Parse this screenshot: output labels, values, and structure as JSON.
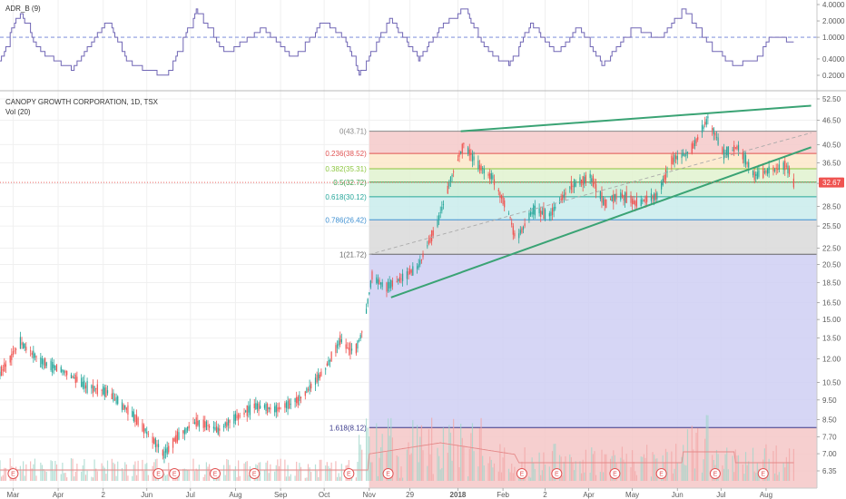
{
  "chart_data": {
    "type": "candlestick",
    "symbol_label": "CANOPY GROWTH CORPORATION, 1D, TSX",
    "volume_label": "Vol (20)",
    "indicator_label": "ADR_B (9)",
    "last_price": "32.67",
    "colors": {
      "up": "#26a69a",
      "down": "#ef5350",
      "trend": "#3aa374",
      "indicator": "#7066b5",
      "price_line": "#ef5350"
    },
    "x_axis": {
      "ticks": [
        {
          "label": "Mar",
          "date": "2017-03-01"
        },
        {
          "label": "Apr",
          "date": "2017-04-01"
        },
        {
          "label": "2",
          "date": "2017-05-02"
        },
        {
          "label": "Jun",
          "date": "2017-06-01"
        },
        {
          "label": "Jul",
          "date": "2017-07-01"
        },
        {
          "label": "Aug",
          "date": "2017-08-01"
        },
        {
          "label": "Sep",
          "date": "2017-09-01"
        },
        {
          "label": "Oct",
          "date": "2017-10-01"
        },
        {
          "label": "Nov",
          "date": "2017-11-01"
        },
        {
          "label": "29",
          "date": "2017-11-29"
        },
        {
          "label": "2018",
          "date": "2018-01-01"
        },
        {
          "label": "Feb",
          "date": "2018-02-01"
        },
        {
          "label": "2",
          "date": "2018-03-02"
        },
        {
          "label": "Apr",
          "date": "2018-04-01"
        },
        {
          "label": "May",
          "date": "2018-05-01"
        },
        {
          "label": "Jun",
          "date": "2018-06-01"
        },
        {
          "label": "Jul",
          "date": "2018-07-01"
        },
        {
          "label": "Aug",
          "date": "2018-08-01"
        }
      ]
    },
    "price_axis": {
      "scale": "log",
      "ticks": [
        "52.50",
        "46.50",
        "40.50",
        "36.50",
        "32.50",
        "28.50",
        "25.50",
        "22.50",
        "20.50",
        "18.50",
        "16.50",
        "15.00",
        "13.50",
        "12.00",
        "10.50",
        "9.50",
        "8.50",
        "7.70",
        "7.00",
        "6.35"
      ]
    },
    "indicator_axis": {
      "scale": "log",
      "ticks": [
        "4.0000",
        "2.0000",
        "1.0000",
        "0.4000",
        "0.2000"
      ],
      "reference_line": 1.0
    },
    "fibonacci": {
      "start_date": "2017-11-01",
      "levels": [
        {
          "ratio": "0",
          "price": 43.71,
          "label": "0(43.71)",
          "color": "#888888",
          "fill": "#f5c9c9"
        },
        {
          "ratio": "0.236",
          "price": 38.52,
          "label": "0.236(38.52)",
          "color": "#e05252",
          "fill": "#fde7c9"
        },
        {
          "ratio": "0.382",
          "price": 35.31,
          "label": "0.382(35.31)",
          "color": "#8cc63f",
          "fill": "#e1f2cf"
        },
        {
          "ratio": "0.5",
          "price": 32.72,
          "label": "0.5(32.72)",
          "color": "#3c9c4a",
          "fill": "#c9ecd6"
        },
        {
          "ratio": "0.618",
          "price": 30.12,
          "label": "0.618(30.12)",
          "color": "#26a69a",
          "fill": "#c9ecec"
        },
        {
          "ratio": "0.786",
          "price": 26.42,
          "label": "0.786(26.42)",
          "color": "#3d8fd1",
          "fill": "#d9d9d9"
        },
        {
          "ratio": "1",
          "price": 21.72,
          "label": "1(21.72)",
          "color": "#666666",
          "fill": "#cfcff3"
        },
        {
          "ratio": "1.618",
          "price": 8.12,
          "label": "1.618(8.12)",
          "color": "#3a3a8c",
          "fill": "#f4c7c7"
        }
      ]
    },
    "trendlines": [
      {
        "name": "upper-channel",
        "from": {
          "date": "2018-01-03",
          "price": 43.7
        },
        "to": {
          "date": "2018-09-01",
          "price": 50.5
        }
      },
      {
        "name": "rising-support",
        "from": {
          "date": "2017-11-16",
          "price": 17.0
        },
        "to": {
          "date": "2018-09-01",
          "price": 39.9
        }
      },
      {
        "name": "dashed-midline",
        "from": {
          "date": "2017-11-01",
          "price": 21.7
        },
        "to": {
          "date": "2018-09-01",
          "price": 43.3
        }
      }
    ],
    "earnings_dates": [
      "2017-03-01",
      "2017-06-09",
      "2017-06-20",
      "2017-07-18",
      "2017-08-14",
      "2017-10-18",
      "2017-11-14",
      "2018-02-14",
      "2018-03-10",
      "2018-04-19",
      "2018-05-21",
      "2018-06-27",
      "2018-07-30"
    ],
    "price_anchors": [
      [
        "2017-02-20",
        11.0
      ],
      [
        "2017-03-06",
        13.2
      ],
      [
        "2017-03-20",
        11.8
      ],
      [
        "2017-04-05",
        11.2
      ],
      [
        "2017-04-20",
        10.3
      ],
      [
        "2017-05-05",
        9.9
      ],
      [
        "2017-05-20",
        8.9
      ],
      [
        "2017-06-02",
        7.8
      ],
      [
        "2017-06-13",
        7.0
      ],
      [
        "2017-06-22",
        7.7
      ],
      [
        "2017-07-05",
        8.4
      ],
      [
        "2017-07-20",
        8.0
      ],
      [
        "2017-08-02",
        8.6
      ],
      [
        "2017-08-15",
        9.2
      ],
      [
        "2017-08-30",
        9.0
      ],
      [
        "2017-09-15",
        9.6
      ],
      [
        "2017-10-01",
        11.2
      ],
      [
        "2017-10-12",
        13.3
      ],
      [
        "2017-10-22",
        12.4
      ],
      [
        "2017-10-28",
        14.2
      ],
      [
        "2017-11-03",
        19.2
      ],
      [
        "2017-11-12",
        18.0
      ],
      [
        "2017-11-22",
        18.8
      ],
      [
        "2017-12-05",
        20.3
      ],
      [
        "2017-12-18",
        26.0
      ],
      [
        "2017-12-28",
        34.0
      ],
      [
        "2018-01-05",
        40.5
      ],
      [
        "2018-01-15",
        36.0
      ],
      [
        "2018-01-25",
        33.5
      ],
      [
        "2018-02-05",
        27.5
      ],
      [
        "2018-02-10",
        23.5
      ],
      [
        "2018-02-22",
        28.0
      ],
      [
        "2018-03-05",
        27.0
      ],
      [
        "2018-03-20",
        32.0
      ],
      [
        "2018-04-02",
        33.8
      ],
      [
        "2018-04-12",
        29.0
      ],
      [
        "2018-04-22",
        30.5
      ],
      [
        "2018-05-05",
        29.0
      ],
      [
        "2018-05-18",
        30.3
      ],
      [
        "2018-05-28",
        37.0
      ],
      [
        "2018-06-10",
        39.0
      ],
      [
        "2018-06-22",
        47.0
      ],
      [
        "2018-07-03",
        38.5
      ],
      [
        "2018-07-13",
        40.0
      ],
      [
        "2018-07-24",
        34.0
      ],
      [
        "2018-08-05",
        35.0
      ],
      [
        "2018-08-15",
        36.0
      ],
      [
        "2018-08-20",
        32.7
      ]
    ],
    "indicator_anchors": [
      [
        "2017-02-20",
        0.35
      ],
      [
        "2017-03-05",
        3.2
      ],
      [
        "2017-03-18",
        0.6
      ],
      [
        "2017-04-10",
        0.25
      ],
      [
        "2017-05-05",
        2.0
      ],
      [
        "2017-05-20",
        0.3
      ],
      [
        "2017-06-15",
        0.2
      ],
      [
        "2017-07-05",
        3.2
      ],
      [
        "2017-07-25",
        0.5
      ],
      [
        "2017-08-20",
        1.5
      ],
      [
        "2017-09-10",
        0.4
      ],
      [
        "2017-09-30",
        2.0
      ],
      [
        "2017-10-15",
        1.0
      ],
      [
        "2017-10-25",
        0.2
      ],
      [
        "2017-11-15",
        2.2
      ],
      [
        "2017-12-05",
        0.4
      ],
      [
        "2017-12-20",
        1.5
      ],
      [
        "2018-01-05",
        3.5
      ],
      [
        "2018-01-20",
        0.6
      ],
      [
        "2018-02-05",
        0.3
      ],
      [
        "2018-02-20",
        1.8
      ],
      [
        "2018-03-10",
        0.5
      ],
      [
        "2018-03-25",
        1.6
      ],
      [
        "2018-04-10",
        0.3
      ],
      [
        "2018-05-01",
        1.5
      ],
      [
        "2018-05-20",
        0.9
      ],
      [
        "2018-06-05",
        3.3
      ],
      [
        "2018-06-25",
        0.6
      ],
      [
        "2018-07-10",
        0.3
      ],
      [
        "2018-07-25",
        0.4
      ],
      [
        "2018-08-05",
        1.1
      ],
      [
        "2018-08-20",
        0.8
      ]
    ]
  }
}
